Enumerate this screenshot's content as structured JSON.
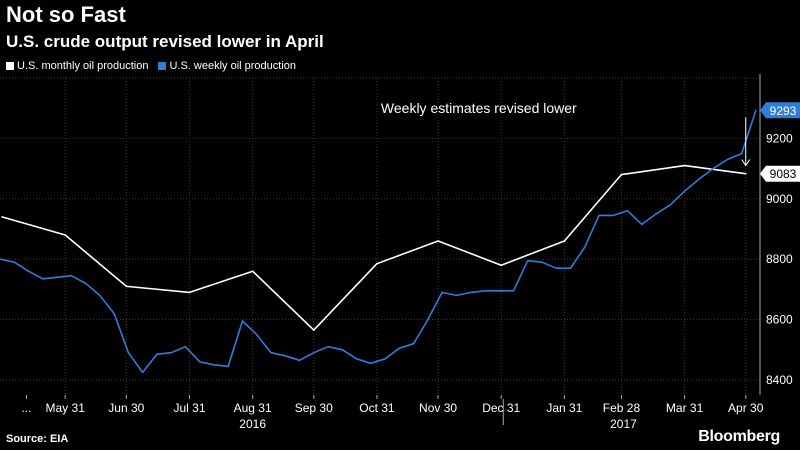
{
  "chart_data": {
    "type": "line",
    "title": "Not so Fast",
    "subtitle": "U.S. crude output revised lower in April",
    "ylim": [
      8350,
      9400
    ],
    "yticks": [
      8400,
      8600,
      8800,
      9000,
      9200
    ],
    "ytick_labels": [
      "8400",
      "8600",
      "8800",
      "9000",
      "9200"
    ],
    "xticks": [
      {
        "label": "...",
        "x": "2016-05-12"
      },
      {
        "label": "May 31",
        "x": "2016-05-31"
      },
      {
        "label": "Jun 30",
        "x": "2016-06-30"
      },
      {
        "label": "Jul 31",
        "x": "2016-07-31"
      },
      {
        "label": "Aug 31",
        "x": "2016-08-31"
      },
      {
        "label": "Sep 30",
        "x": "2016-09-30"
      },
      {
        "label": "Oct 31",
        "x": "2016-10-31"
      },
      {
        "label": "Nov 30",
        "x": "2016-11-30"
      },
      {
        "label": "Dec 31",
        "x": "2016-12-31"
      },
      {
        "label": "Jan 31",
        "x": "2017-01-31"
      },
      {
        "label": "Feb 28",
        "x": "2017-02-28"
      },
      {
        "label": "Mar 31",
        "x": "2017-03-31"
      },
      {
        "label": "Apr 30",
        "x": "2017-04-30"
      }
    ],
    "year_labels": [
      {
        "label": "2016",
        "x": "2016-08-31"
      },
      {
        "label": "2017",
        "x": "2017-03-01"
      }
    ],
    "year_divider": "2017-01-01",
    "xlim": [
      "2016-04-29",
      "2017-05-07"
    ],
    "series": [
      {
        "name": "U.S. monthly oil production",
        "color": "#ffffff",
        "points": [
          [
            "2016-04-30",
            8940
          ],
          [
            "2016-05-31",
            8880
          ],
          [
            "2016-06-30",
            8710
          ],
          [
            "2016-07-31",
            8690
          ],
          [
            "2016-08-31",
            8760
          ],
          [
            "2016-09-30",
            8565
          ],
          [
            "2016-10-31",
            8785
          ],
          [
            "2016-11-30",
            8860
          ],
          [
            "2016-12-31",
            8780
          ],
          [
            "2017-01-31",
            8860
          ],
          [
            "2017-02-28",
            9080
          ],
          [
            "2017-03-31",
            9110
          ],
          [
            "2017-04-30",
            9083
          ]
        ]
      },
      {
        "name": "U.S. weekly oil production",
        "color": "#2f7dd8",
        "points": [
          [
            "2016-04-29",
            8800
          ],
          [
            "2016-05-06",
            8790
          ],
          [
            "2016-05-13",
            8760
          ],
          [
            "2016-05-20",
            8735
          ],
          [
            "2016-05-27",
            8740
          ],
          [
            "2016-06-03",
            8745
          ],
          [
            "2016-06-10",
            8720
          ],
          [
            "2016-06-17",
            8680
          ],
          [
            "2016-06-24",
            8620
          ],
          [
            "2016-07-01",
            8490
          ],
          [
            "2016-07-08",
            8425
          ],
          [
            "2016-07-15",
            8485
          ],
          [
            "2016-07-22",
            8490
          ],
          [
            "2016-07-29",
            8510
          ],
          [
            "2016-08-05",
            8460
          ],
          [
            "2016-08-12",
            8450
          ],
          [
            "2016-08-19",
            8445
          ],
          [
            "2016-08-26",
            8595
          ],
          [
            "2016-09-02",
            8550
          ],
          [
            "2016-09-09",
            8490
          ],
          [
            "2016-09-16",
            8480
          ],
          [
            "2016-09-23",
            8465
          ],
          [
            "2016-09-30",
            8490
          ],
          [
            "2016-10-07",
            8510
          ],
          [
            "2016-10-14",
            8500
          ],
          [
            "2016-10-21",
            8470
          ],
          [
            "2016-10-28",
            8455
          ],
          [
            "2016-11-04",
            8470
          ],
          [
            "2016-11-11",
            8505
          ],
          [
            "2016-11-18",
            8520
          ],
          [
            "2016-11-25",
            8600
          ],
          [
            "2016-12-02",
            8690
          ],
          [
            "2016-12-09",
            8680
          ],
          [
            "2016-12-16",
            8690
          ],
          [
            "2016-12-23",
            8695
          ],
          [
            "2016-12-30",
            8695
          ],
          [
            "2017-01-06",
            8695
          ],
          [
            "2017-01-13",
            8795
          ],
          [
            "2017-01-20",
            8790
          ],
          [
            "2017-01-27",
            8770
          ],
          [
            "2017-02-03",
            8770
          ],
          [
            "2017-02-10",
            8840
          ],
          [
            "2017-02-17",
            8945
          ],
          [
            "2017-02-24",
            8945
          ],
          [
            "2017-03-03",
            8960
          ],
          [
            "2017-03-10",
            8915
          ],
          [
            "2017-03-17",
            8950
          ],
          [
            "2017-03-24",
            8980
          ],
          [
            "2017-03-31",
            9025
          ],
          [
            "2017-04-07",
            9065
          ],
          [
            "2017-04-14",
            9100
          ],
          [
            "2017-04-21",
            9130
          ],
          [
            "2017-04-28",
            9150
          ],
          [
            "2017-05-05",
            9293
          ]
        ]
      }
    ],
    "end_labels": [
      {
        "series": 1,
        "value": "9293"
      },
      {
        "series": 0,
        "value": "9083"
      }
    ],
    "annotation": {
      "text": "Weekly estimates revised lower",
      "x": "2016-12-20",
      "y": 9300,
      "arrow_x": "2017-04-30",
      "arrow_y_from": 9270,
      "arrow_y_to": 9110
    },
    "grid": true,
    "legend_position": "top-left"
  },
  "footer": {
    "source": "Source: EIA",
    "brand": "Bloomberg"
  },
  "colors": {
    "background": "#000000",
    "grid": "#3a3a3a",
    "weekly": "#2f7dd8",
    "monthly": "#ffffff"
  }
}
